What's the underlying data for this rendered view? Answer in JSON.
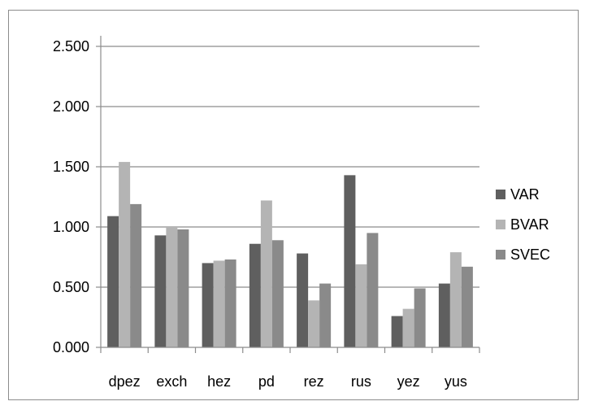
{
  "chart_data": {
    "type": "bar",
    "title": "",
    "xlabel": "",
    "ylabel": "",
    "categories": [
      "dpez",
      "exch",
      "hez",
      "pd",
      "rez",
      "rus",
      "yez",
      "yus"
    ],
    "series": [
      {
        "name": "VAR",
        "values": [
          1.09,
          0.93,
          0.7,
          0.86,
          0.78,
          1.43,
          0.26,
          0.53
        ]
      },
      {
        "name": "BVAR",
        "values": [
          1.54,
          1.0,
          0.72,
          1.22,
          0.39,
          0.69,
          0.32,
          0.79
        ]
      },
      {
        "name": "SVEC",
        "values": [
          1.19,
          0.98,
          0.73,
          0.89,
          0.53,
          0.95,
          0.49,
          0.67
        ]
      }
    ],
    "ylim": [
      0,
      2.5
    ],
    "yticks": [
      "0.000",
      "0.500",
      "1.000",
      "1.500",
      "2.000",
      "2.500"
    ],
    "colors": [
      "#5f5f5f",
      "#b4b4b4",
      "#8a8a8a"
    ],
    "grid": true,
    "legend": "right"
  }
}
